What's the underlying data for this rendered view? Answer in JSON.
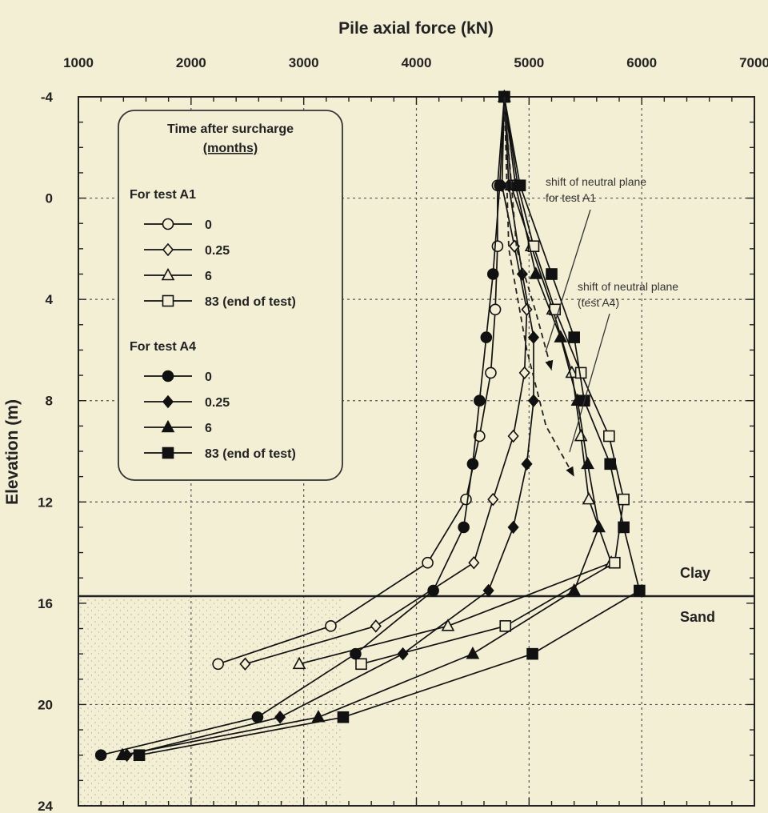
{
  "chart_data": {
    "type": "line",
    "title": "",
    "xlabel": "Pile axial force (kN)",
    "ylabel": "Elevation (m)",
    "x_axis_position": "top",
    "y_axis_inverted": true,
    "xlim": [
      1000,
      7000
    ],
    "ylim": [
      -4,
      24
    ],
    "xticks": [
      "1000",
      "2000",
      "3000",
      "4000",
      "5000",
      "6000",
      "7000"
    ],
    "yticks": [
      "-4",
      "0",
      "4",
      "8",
      "12",
      "16",
      "20",
      "24"
    ],
    "grid": true,
    "legend": {
      "position": "top-left",
      "title": "Time after surcharge",
      "subtitle": "(months)",
      "groups": [
        {
          "heading": "For test A1",
          "entries": [
            "0",
            "0.25",
            "6",
            "83 (end of test)"
          ]
        },
        {
          "heading": "For test A4",
          "entries": [
            "0",
            "0.25",
            "6",
            "83 (end of test)"
          ]
        }
      ]
    },
    "series": [
      {
        "name": "0",
        "group": "For test A1",
        "marker": "circle-open",
        "points": [
          [
            4780,
            -4
          ],
          [
            4720,
            -0.5
          ],
          [
            4720,
            1.9
          ],
          [
            4700,
            4.4
          ],
          [
            4660,
            6.9
          ],
          [
            4560,
            9.4
          ],
          [
            4440,
            11.9
          ],
          [
            4100,
            14.4
          ],
          [
            3240,
            16.9
          ],
          [
            2240,
            18.4
          ]
        ]
      },
      {
        "name": "0.25",
        "group": "For test A1",
        "marker": "diamond-open",
        "points": [
          [
            4780,
            -4
          ],
          [
            4760,
            -0.5
          ],
          [
            4870,
            1.9
          ],
          [
            4980,
            4.4
          ],
          [
            4960,
            6.9
          ],
          [
            4860,
            9.4
          ],
          [
            4680,
            11.9
          ],
          [
            4510,
            14.4
          ],
          [
            3640,
            16.9
          ],
          [
            2480,
            18.4
          ]
        ]
      },
      {
        "name": "6",
        "group": "For test A1",
        "marker": "triangle-open",
        "points": [
          [
            4780,
            -4
          ],
          [
            4840,
            -0.5
          ],
          [
            5020,
            1.9
          ],
          [
            5210,
            4.4
          ],
          [
            5380,
            6.9
          ],
          [
            5460,
            9.4
          ],
          [
            5530,
            11.9
          ],
          [
            5730,
            14.4
          ],
          [
            4280,
            16.9
          ],
          [
            2960,
            18.4
          ]
        ]
      },
      {
        "name": "83 (end of test)",
        "group": "For test A1",
        "marker": "square-open",
        "points": [
          [
            4780,
            -4
          ],
          [
            4900,
            -0.5
          ],
          [
            5040,
            1.9
          ],
          [
            5230,
            4.4
          ],
          [
            5460,
            6.9
          ],
          [
            5710,
            9.4
          ],
          [
            5840,
            11.9
          ],
          [
            5760,
            14.4
          ],
          [
            4790,
            16.9
          ],
          [
            3510,
            18.4
          ]
        ]
      },
      {
        "name": "0",
        "group": "For test A4",
        "marker": "circle-filled",
        "points": [
          [
            4780,
            -4
          ],
          [
            4740,
            -0.5
          ],
          [
            4680,
            3.0
          ],
          [
            4620,
            5.5
          ],
          [
            4560,
            8.0
          ],
          [
            4500,
            10.5
          ],
          [
            4420,
            13.0
          ],
          [
            4150,
            15.5
          ],
          [
            3460,
            18.0
          ],
          [
            2590,
            20.5
          ],
          [
            1200,
            22.0
          ]
        ]
      },
      {
        "name": "0.25",
        "group": "For test A4",
        "marker": "diamond-filled",
        "points": [
          [
            4780,
            -4
          ],
          [
            4820,
            -0.5
          ],
          [
            4940,
            3.0
          ],
          [
            5040,
            5.5
          ],
          [
            5040,
            8.0
          ],
          [
            4980,
            10.5
          ],
          [
            4860,
            13.0
          ],
          [
            4640,
            15.5
          ],
          [
            3880,
            18.0
          ],
          [
            2790,
            20.5
          ],
          [
            1430,
            22.0
          ]
        ]
      },
      {
        "name": "6",
        "group": "For test A4",
        "marker": "triangle-filled",
        "points": [
          [
            4780,
            -4
          ],
          [
            4880,
            -0.5
          ],
          [
            5060,
            3.0
          ],
          [
            5280,
            5.5
          ],
          [
            5430,
            8.0
          ],
          [
            5520,
            10.5
          ],
          [
            5620,
            13.0
          ],
          [
            5400,
            15.5
          ],
          [
            4500,
            18.0
          ],
          [
            3130,
            20.5
          ],
          [
            1390,
            22.0
          ]
        ]
      },
      {
        "name": "83 (end of test)",
        "group": "For test A4",
        "marker": "square-filled",
        "points": [
          [
            4780,
            -4
          ],
          [
            4920,
            -0.5
          ],
          [
            5200,
            3.0
          ],
          [
            5400,
            5.5
          ],
          [
            5490,
            8.0
          ],
          [
            5720,
            10.5
          ],
          [
            5840,
            13.0
          ],
          [
            5980,
            15.5
          ],
          [
            5030,
            18.0
          ],
          [
            3350,
            20.5
          ],
          [
            1540,
            22.0
          ]
        ]
      }
    ],
    "neutral_plane_shift": {
      "A1": [
        [
          4780,
          -4
        ],
        [
          4890,
          2.0
        ],
        [
          5060,
          4.5
        ],
        [
          5200,
          6.8
        ]
      ],
      "A4": [
        [
          4780,
          -4
        ],
        [
          4820,
          2.0
        ],
        [
          4980,
          6.0
        ],
        [
          5150,
          9.0
        ],
        [
          5400,
          11.0
        ]
      ]
    },
    "annotations": [
      {
        "text": "shift of neutral plane",
        "line2": "for test A1"
      },
      {
        "text": "shift of neutral plane",
        "line2": "(test A4)"
      }
    ],
    "layers": [
      {
        "name": "Clay",
        "above_elevation": 16
      },
      {
        "name": "Sand",
        "below_elevation": 16
      }
    ]
  }
}
